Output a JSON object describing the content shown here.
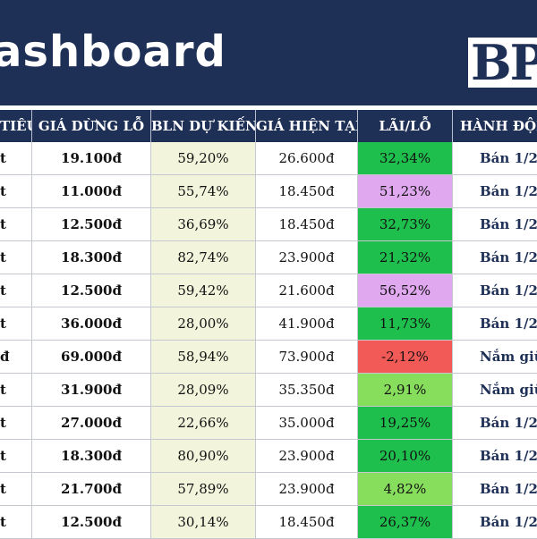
{
  "header": {
    "title": "ashboard",
    "logo": "BP"
  },
  "colors": {
    "navy": "#1f3057",
    "forecast_bg": "#f2f5dc",
    "green_strong": "#1fbf4e",
    "green_light": "#87dd5c",
    "violet": "#e0a8ef",
    "red": "#f25a57"
  },
  "table": {
    "columns": [
      "TIÊU",
      "GIÁ DỪNG LỖ",
      "BLN DỰ KIẾN",
      "GIÁ HIỆN TẠI",
      "LÃI/LỖ",
      "HÀNH ĐỘN"
    ],
    "rows": [
      {
        "target": "t",
        "stop_loss": "19.100đ",
        "expected": "59,20%",
        "current": "26.600đ",
        "pnl": "32,34%",
        "pnl_color": "#1fbf4e",
        "action": "Bán 1/2"
      },
      {
        "target": "t",
        "stop_loss": "11.000đ",
        "expected": "55,74%",
        "current": "18.450đ",
        "pnl": "51,23%",
        "pnl_color": "#e0a8ef",
        "action": "Bán 1/2"
      },
      {
        "target": "t",
        "stop_loss": "12.500đ",
        "expected": "36,69%",
        "current": "18.450đ",
        "pnl": "32,73%",
        "pnl_color": "#1fbf4e",
        "action": "Bán 1/2"
      },
      {
        "target": "t",
        "stop_loss": "18.300đ",
        "expected": "82,74%",
        "current": "23.900đ",
        "pnl": "21,32%",
        "pnl_color": "#1fbf4e",
        "action": "Bán 1/2"
      },
      {
        "target": "t",
        "stop_loss": "12.500đ",
        "expected": "59,42%",
        "current": "21.600đ",
        "pnl": "56,52%",
        "pnl_color": "#e0a8ef",
        "action": "Bán 1/2"
      },
      {
        "target": "t",
        "stop_loss": "36.000đ",
        "expected": "28,00%",
        "current": "41.900đ",
        "pnl": "11,73%",
        "pnl_color": "#1fbf4e",
        "action": "Bán 1/2"
      },
      {
        "target": "đ",
        "stop_loss": "69.000đ",
        "expected": "58,94%",
        "current": "73.900đ",
        "pnl": "-2,12%",
        "pnl_color": "#f25a57",
        "action": "Nắm giữ"
      },
      {
        "target": "t",
        "stop_loss": "31.900đ",
        "expected": "28,09%",
        "current": "35.350đ",
        "pnl": "2,91%",
        "pnl_color": "#87dd5c",
        "action": "Nắm giữ"
      },
      {
        "target": "t",
        "stop_loss": "27.000đ",
        "expected": "22,66%",
        "current": "35.000đ",
        "pnl": "19,25%",
        "pnl_color": "#1fbf4e",
        "action": "Bán 1/2"
      },
      {
        "target": "t",
        "stop_loss": "18.300đ",
        "expected": "80,90%",
        "current": "23.900đ",
        "pnl": "20,10%",
        "pnl_color": "#1fbf4e",
        "action": "Bán 1/2"
      },
      {
        "target": "t",
        "stop_loss": "21.700đ",
        "expected": "57,89%",
        "current": "23.900đ",
        "pnl": "4,82%",
        "pnl_color": "#87dd5c",
        "action": "Bán 1/2"
      },
      {
        "target": "t",
        "stop_loss": "12.500đ",
        "expected": "30,14%",
        "current": "18.450đ",
        "pnl": "26,37%",
        "pnl_color": "#1fbf4e",
        "action": "Bán 1/2"
      }
    ]
  }
}
